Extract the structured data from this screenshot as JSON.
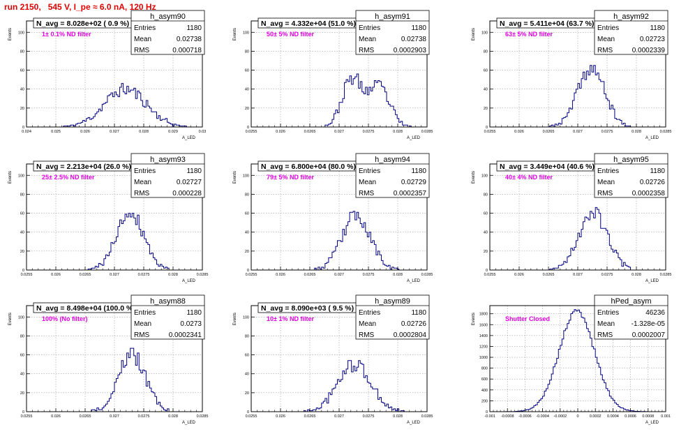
{
  "header": {
    "run_title": "run 2150,   545 V, I_pe ≈ 6.0 nA, 120 Hz"
  },
  "colors": {
    "title": "#e00000",
    "histogram": "#000080",
    "annotation": "#e000e0",
    "grid": "#888888"
  },
  "stats_labels": {
    "entries": "Entries",
    "mean": "Mean",
    "rms": "RMS"
  },
  "y_axis_label": "Events",
  "x_axis_label": "A_LED",
  "chart_data": [
    {
      "type": "bar",
      "name": "h_asym90",
      "stats": {
        "entries": "1180",
        "mean": "0.02738",
        "rms": "0.000718"
      },
      "navg": "N_avg = 8.028e+02 ( 0.9 %)",
      "note": "1± 0.1% ND filter",
      "xlim": [
        0.024,
        0.03
      ],
      "ylim": [
        0,
        112
      ],
      "xticks": [
        "0.024",
        "0.025",
        "0.026",
        "0.027",
        "0.028",
        "0.029",
        "0.03"
      ],
      "xtick_values": [
        0.024,
        0.025,
        0.026,
        0.027,
        0.028,
        0.029,
        0.03
      ],
      "yticks": [
        0,
        20,
        40,
        60,
        80,
        100
      ],
      "peaks": [
        {
          "mu": 0.02738,
          "sigma": 0.00072,
          "height": 40
        }
      ],
      "seed": 11
    },
    {
      "type": "bar",
      "name": "h_asym91",
      "stats": {
        "entries": "1180",
        "mean": "0.02738",
        "rms": "0.0002903"
      },
      "navg": "N_avg = 4.332e+04 (51.0 %)",
      "note": "50± 5% ND filter",
      "xlim": [
        0.0255,
        0.0285
      ],
      "ylim": [
        0,
        112
      ],
      "xticks": [
        "0.0255",
        "0.026",
        "0.0265",
        "0.027",
        "0.0275",
        "0.028",
        "0.0285"
      ],
      "xtick_values": [
        0.0255,
        0.026,
        0.0265,
        0.027,
        0.0275,
        0.028,
        0.0285
      ],
      "yticks": [
        0,
        20,
        40,
        60,
        80,
        100
      ],
      "peaks": [
        {
          "mu": 0.02722,
          "sigma": 0.00017,
          "height": 50
        },
        {
          "mu": 0.02768,
          "sigma": 0.00018,
          "height": 42
        }
      ],
      "seed": 23
    },
    {
      "type": "bar",
      "name": "h_asym92",
      "stats": {
        "entries": "1180",
        "mean": "0.02723",
        "rms": "0.0002339"
      },
      "navg": "N_avg = 5.411e+04 (63.7 %)",
      "note": "63± 5% ND filter",
      "xlim": [
        0.0255,
        0.0285
      ],
      "ylim": [
        0,
        112
      ],
      "xticks": [
        "0.0255",
        "0.026",
        "0.0265",
        "0.027",
        "0.0275",
        "0.028",
        "0.0285"
      ],
      "xtick_values": [
        0.0255,
        0.026,
        0.0265,
        0.027,
        0.0275,
        0.028,
        0.0285
      ],
      "yticks": [
        0,
        20,
        40,
        60,
        80,
        100
      ],
      "peaks": [
        {
          "mu": 0.02723,
          "sigma": 0.00023,
          "height": 62
        }
      ],
      "seed": 37
    },
    {
      "type": "bar",
      "name": "h_asym93",
      "stats": {
        "entries": "1180",
        "mean": "0.02727",
        "rms": "0.000228"
      },
      "navg": "N_avg = 2.213e+04 (26.0 %)",
      "note": "25± 2.5% ND filter",
      "xlim": [
        0.0255,
        0.0285
      ],
      "ylim": [
        0,
        112
      ],
      "xticks": [
        "0.0255",
        "0.026",
        "0.0265",
        "0.027",
        "0.0275",
        "0.028",
        "0.0285"
      ],
      "xtick_values": [
        0.0255,
        0.026,
        0.0265,
        0.027,
        0.0275,
        0.028,
        0.0285
      ],
      "yticks": [
        0,
        20,
        40,
        60,
        80,
        100
      ],
      "peaks": [
        {
          "mu": 0.02727,
          "sigma": 0.00023,
          "height": 62
        }
      ],
      "seed": 41
    },
    {
      "type": "bar",
      "name": "h_asym94",
      "stats": {
        "entries": "1180",
        "mean": "0.02729",
        "rms": "0.0002357"
      },
      "navg": "N_avg = 6.800e+04 (80.0 %)",
      "note": "79± 5% ND filter",
      "xlim": [
        0.0255,
        0.0285
      ],
      "ylim": [
        0,
        112
      ],
      "xticks": [
        "0.0255",
        "0.026",
        "0.0265",
        "0.027",
        "0.0275",
        "0.028",
        "0.0285"
      ],
      "xtick_values": [
        0.0255,
        0.026,
        0.0265,
        0.027,
        0.0275,
        0.028,
        0.0285
      ],
      "yticks": [
        0,
        20,
        40,
        60,
        80,
        100
      ],
      "peaks": [
        {
          "mu": 0.02729,
          "sigma": 0.00024,
          "height": 58
        }
      ],
      "seed": 53
    },
    {
      "type": "bar",
      "name": "h_asym95",
      "stats": {
        "entries": "1180",
        "mean": "0.02726",
        "rms": "0.0002358"
      },
      "navg": "N_avg = 3.449e+04 (40.6 %)",
      "note": "40± 4% ND filter",
      "xlim": [
        0.0255,
        0.0285
      ],
      "ylim": [
        0,
        112
      ],
      "xticks": [
        "0.0255",
        "0.026",
        "0.0265",
        "0.027",
        "0.0275",
        "0.028",
        "0.0285"
      ],
      "xtick_values": [
        0.0255,
        0.026,
        0.0265,
        0.027,
        0.0275,
        0.028,
        0.0285
      ],
      "yticks": [
        0,
        20,
        40,
        60,
        80,
        100
      ],
      "peaks": [
        {
          "mu": 0.02726,
          "sigma": 0.00024,
          "height": 62
        }
      ],
      "seed": 67
    },
    {
      "type": "bar",
      "name": "h_asym88",
      "stats": {
        "entries": "1180",
        "mean": "0.0273",
        "rms": "0.0002341"
      },
      "navg": "N_avg = 8.498e+04 (100.0 %)",
      "note": "100% (No filter)",
      "xlim": [
        0.0255,
        0.0285
      ],
      "ylim": [
        0,
        112
      ],
      "xticks": [
        "0.0255",
        "0.026",
        "0.0265",
        "0.027",
        "0.0275",
        "0.028",
        "0.0285"
      ],
      "xtick_values": [
        0.0255,
        0.026,
        0.0265,
        0.027,
        0.0275,
        0.028,
        0.0285
      ],
      "yticks": [
        0,
        20,
        40,
        60,
        80,
        100
      ],
      "peaks": [
        {
          "mu": 0.0273,
          "sigma": 0.00023,
          "height": 60
        }
      ],
      "seed": 79
    },
    {
      "type": "bar",
      "name": "h_asym89",
      "stats": {
        "entries": "1180",
        "mean": "0.02726",
        "rms": "0.0002804"
      },
      "navg": "N_avg = 8.090e+03 ( 9.5 %)",
      "note": "10± 1% ND filter",
      "xlim": [
        0.0255,
        0.0285
      ],
      "ylim": [
        0,
        112
      ],
      "xticks": [
        "0.0255",
        "0.026",
        "0.0265",
        "0.027",
        "0.0275",
        "0.028",
        "0.0285"
      ],
      "xtick_values": [
        0.0255,
        0.026,
        0.0265,
        0.027,
        0.0275,
        0.028,
        0.0285
      ],
      "yticks": [
        0,
        20,
        40,
        60,
        80,
        100
      ],
      "peaks": [
        {
          "mu": 0.02726,
          "sigma": 0.00028,
          "height": 50
        }
      ],
      "seed": 97
    },
    {
      "type": "bar",
      "name": "hPed_asym",
      "stats": {
        "entries": "46236",
        "mean": "-1.328e-05",
        "rms": "0.0002007"
      },
      "navg": "",
      "note": "Shutter Closed",
      "xlim": [
        -0.001,
        0.001
      ],
      "ylim": [
        0,
        1950
      ],
      "xticks": [
        "-0.001",
        "-0.0008",
        "-0.0006",
        "-0.0004",
        "-0.0002",
        "0",
        "0.0002",
        "0.0004",
        "0.0006",
        "0.0008",
        "0.001"
      ],
      "xtick_values": [
        -0.001,
        -0.0008,
        -0.0006,
        -0.0004,
        -0.0002,
        0,
        0.0002,
        0.0004,
        0.0006,
        0.0008,
        0.001
      ],
      "yticks": [
        0,
        200,
        400,
        600,
        800,
        1000,
        1200,
        1400,
        1600,
        1800
      ],
      "peaks": [
        {
          "mu": -1e-05,
          "sigma": 0.0002,
          "height": 1850
        }
      ],
      "seed": 5
    }
  ]
}
